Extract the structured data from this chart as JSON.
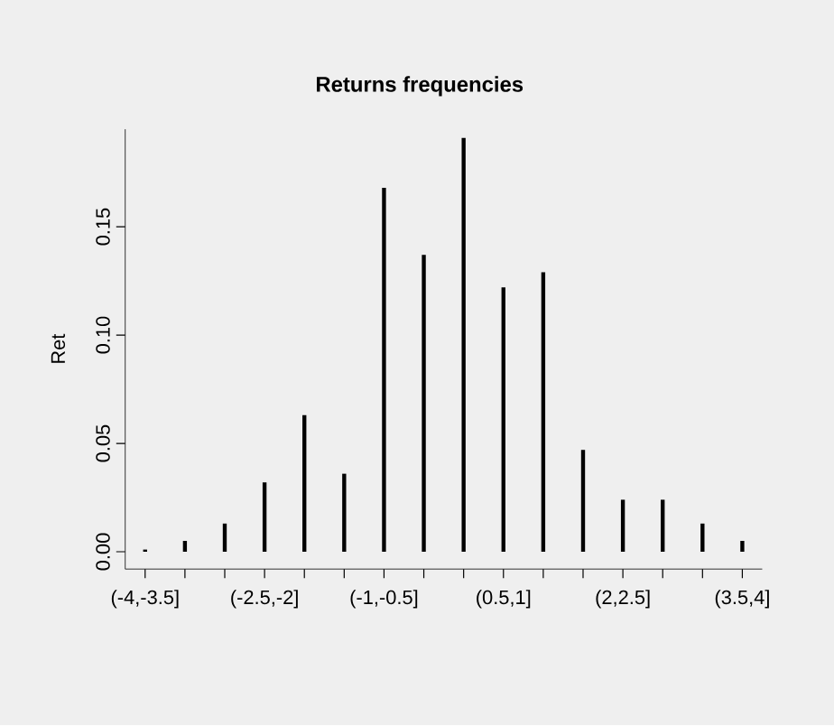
{
  "chart_data": {
    "type": "bar",
    "title": "Returns frequencies",
    "ylabel": "Ret",
    "categories": [
      "(-4,-3.5]",
      null,
      null,
      "(-2.5,-2]",
      null,
      null,
      "(-1,-0.5]",
      null,
      null,
      "(0.5,1]",
      null,
      null,
      "(2,2.5]",
      null,
      null,
      "(3.5,4]"
    ],
    "values": [
      0.001,
      0.005,
      0.013,
      0.032,
      0.063,
      0.036,
      0.168,
      0.137,
      0.191,
      0.122,
      0.129,
      0.047,
      0.024,
      0.024,
      0.013,
      0.005
    ],
    "color": "#000000",
    "ylim": [
      -0.008,
      0.195
    ],
    "yticks": [
      {
        "value": 0,
        "label": "0.00"
      },
      0.05,
      {
        "value": 0.1,
        "label": "0.10"
      },
      0.15
    ]
  }
}
